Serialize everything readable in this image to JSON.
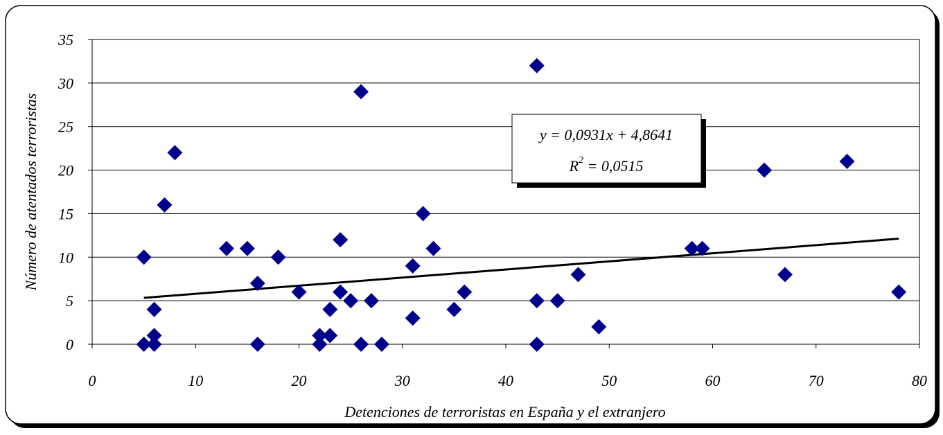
{
  "chart_data": {
    "type": "scatter",
    "title": "",
    "xlabel": "Detenciones de terroristas en España y el extranjero",
    "ylabel": "Número de atentados terroristas",
    "xlim": [
      0,
      80
    ],
    "ylim": [
      0,
      35
    ],
    "x_ticks": [
      "0",
      "10",
      "20",
      "30",
      "40",
      "50",
      "60",
      "70",
      "80"
    ],
    "y_ticks": [
      "0",
      "5",
      "10",
      "15",
      "20",
      "25",
      "30",
      "35"
    ],
    "grid": "horizontal",
    "marker_color": "#00008B",
    "points": [
      {
        "x": 5,
        "y": 10
      },
      {
        "x": 5,
        "y": 0
      },
      {
        "x": 6,
        "y": 4
      },
      {
        "x": 6,
        "y": 1
      },
      {
        "x": 6,
        "y": 0
      },
      {
        "x": 7,
        "y": 16
      },
      {
        "x": 8,
        "y": 22
      },
      {
        "x": 13,
        "y": 11
      },
      {
        "x": 15,
        "y": 11
      },
      {
        "x": 16,
        "y": 7
      },
      {
        "x": 16,
        "y": 0
      },
      {
        "x": 18,
        "y": 10
      },
      {
        "x": 20,
        "y": 6
      },
      {
        "x": 22,
        "y": 1
      },
      {
        "x": 22,
        "y": 0
      },
      {
        "x": 23,
        "y": 4
      },
      {
        "x": 23,
        "y": 1
      },
      {
        "x": 24,
        "y": 12
      },
      {
        "x": 24,
        "y": 6
      },
      {
        "x": 25,
        "y": 5
      },
      {
        "x": 26,
        "y": 29
      },
      {
        "x": 26,
        "y": 0
      },
      {
        "x": 27,
        "y": 5
      },
      {
        "x": 28,
        "y": 0
      },
      {
        "x": 31,
        "y": 9
      },
      {
        "x": 31,
        "y": 3
      },
      {
        "x": 32,
        "y": 15
      },
      {
        "x": 33,
        "y": 11
      },
      {
        "x": 35,
        "y": 4
      },
      {
        "x": 36,
        "y": 6
      },
      {
        "x": 43,
        "y": 32
      },
      {
        "x": 43,
        "y": 5
      },
      {
        "x": 43,
        "y": 0
      },
      {
        "x": 45,
        "y": 5
      },
      {
        "x": 47,
        "y": 8
      },
      {
        "x": 49,
        "y": 2
      },
      {
        "x": 58,
        "y": 11
      },
      {
        "x": 59,
        "y": 11
      },
      {
        "x": 65,
        "y": 20
      },
      {
        "x": 67,
        "y": 8
      },
      {
        "x": 73,
        "y": 21
      },
      {
        "x": 78,
        "y": 6
      }
    ],
    "trendline": {
      "type": "linear",
      "slope": 0.0931,
      "intercept": 4.8641,
      "x_range": [
        5,
        78
      ],
      "color": "#000000"
    },
    "annotation": {
      "equation": "y = 0,0931x + 4,8641",
      "r2_label": "R",
      "r2_exponent": "2",
      "r2_value": " = 0,0515"
    }
  }
}
